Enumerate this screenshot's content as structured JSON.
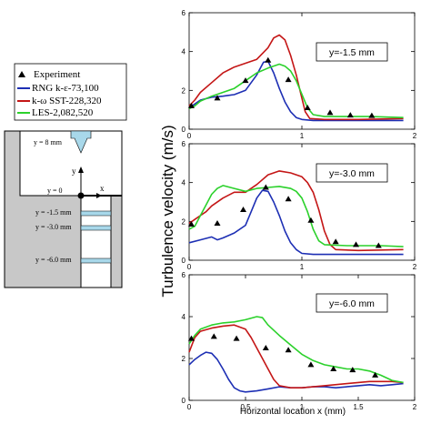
{
  "legend": {
    "entries": [
      {
        "label": "Experiment",
        "color": "#000000",
        "kind": "marker"
      },
      {
        "label": "RNG k-ε-73,100",
        "color": "#1d2fb4",
        "kind": "line"
      },
      {
        "label": "k-ω SST-228,320",
        "color": "#c41616",
        "kind": "line"
      },
      {
        "label": "LES-2,082,520",
        "color": "#2bd12b",
        "kind": "line"
      }
    ]
  },
  "schematic": {
    "inlet_label": "y = 8 mm",
    "origin_label": "y = 0",
    "y_axis_label": "y",
    "x_axis_label": "x",
    "stations": [
      "y = -1.5 mm",
      "y = -3.0 mm",
      "y = -6.0 mm"
    ],
    "colors": {
      "wall": "#c8c8c8",
      "slot": "#a8d8ea",
      "outline": "#000000"
    }
  },
  "shared_axes": {
    "ylabel": "Turbulence velocity (m/s)",
    "xlabel": "Horizontal location x (mm)"
  },
  "chart_data": [
    {
      "type": "line",
      "annotation": "y=-1.5 mm",
      "xlim": [
        0,
        2
      ],
      "ylim": [
        0,
        6
      ],
      "xticks": [
        "0",
        "1",
        "2"
      ],
      "yticks": [
        "0",
        "2",
        "4",
        "6"
      ],
      "series": [
        {
          "name": "Experiment",
          "kind": "scatter",
          "color": "#000000",
          "points": [
            [
              0.02,
              1.2
            ],
            [
              0.25,
              1.6
            ],
            [
              0.5,
              2.5
            ],
            [
              0.7,
              3.55
            ],
            [
              0.88,
              2.55
            ],
            [
              1.05,
              1.1
            ],
            [
              1.25,
              0.85
            ],
            [
              1.43,
              0.72
            ],
            [
              1.62,
              0.7
            ]
          ]
        },
        {
          "name": "RNG k-ε-73,100",
          "kind": "line",
          "color": "#1d2fb4",
          "points": [
            [
              0,
              1.1
            ],
            [
              0.05,
              1.3
            ],
            [
              0.1,
              1.5
            ],
            [
              0.2,
              1.65
            ],
            [
              0.3,
              1.7
            ],
            [
              0.4,
              1.78
            ],
            [
              0.5,
              2.0
            ],
            [
              0.6,
              2.8
            ],
            [
              0.66,
              3.45
            ],
            [
              0.7,
              3.5
            ],
            [
              0.75,
              2.9
            ],
            [
              0.8,
              2.1
            ],
            [
              0.85,
              1.4
            ],
            [
              0.9,
              0.9
            ],
            [
              0.95,
              0.6
            ],
            [
              1.0,
              0.5
            ],
            [
              1.1,
              0.45
            ],
            [
              1.3,
              0.45
            ],
            [
              1.6,
              0.45
            ],
            [
              1.9,
              0.45
            ]
          ]
        },
        {
          "name": "k-ω SST-228,320",
          "kind": "line",
          "color": "#c41616",
          "points": [
            [
              0,
              1.2
            ],
            [
              0.05,
              1.5
            ],
            [
              0.1,
              1.9
            ],
            [
              0.2,
              2.4
            ],
            [
              0.3,
              2.9
            ],
            [
              0.4,
              3.2
            ],
            [
              0.5,
              3.4
            ],
            [
              0.6,
              3.6
            ],
            [
              0.7,
              4.2
            ],
            [
              0.75,
              4.7
            ],
            [
              0.8,
              4.85
            ],
            [
              0.85,
              4.6
            ],
            [
              0.9,
              3.8
            ],
            [
              0.95,
              2.8
            ],
            [
              1.0,
              1.6
            ],
            [
              1.03,
              0.9
            ],
            [
              1.07,
              0.55
            ],
            [
              1.2,
              0.5
            ],
            [
              1.5,
              0.5
            ],
            [
              1.9,
              0.55
            ]
          ]
        },
        {
          "name": "LES-2,082,520",
          "kind": "line",
          "color": "#2bd12b",
          "points": [
            [
              0,
              1.05
            ],
            [
              0.05,
              1.2
            ],
            [
              0.1,
              1.45
            ],
            [
              0.2,
              1.7
            ],
            [
              0.3,
              1.9
            ],
            [
              0.4,
              2.1
            ],
            [
              0.5,
              2.5
            ],
            [
              0.6,
              2.9
            ],
            [
              0.7,
              3.15
            ],
            [
              0.8,
              3.35
            ],
            [
              0.85,
              3.25
            ],
            [
              0.9,
              3.0
            ],
            [
              0.95,
              2.5
            ],
            [
              1.0,
              1.8
            ],
            [
              1.05,
              1.1
            ],
            [
              1.1,
              0.75
            ],
            [
              1.2,
              0.65
            ],
            [
              1.4,
              0.65
            ],
            [
              1.6,
              0.65
            ],
            [
              1.9,
              0.6
            ]
          ]
        }
      ]
    },
    {
      "type": "line",
      "annotation": "y=-3.0 mm",
      "xlim": [
        0,
        2
      ],
      "ylim": [
        0,
        6
      ],
      "xticks": [
        "0",
        "1",
        "2"
      ],
      "yticks": [
        "0",
        "2",
        "4",
        "6"
      ],
      "series": [
        {
          "name": "Experiment",
          "kind": "scatter",
          "color": "#000000",
          "points": [
            [
              0.02,
              1.85
            ],
            [
              0.25,
              1.9
            ],
            [
              0.48,
              2.6
            ],
            [
              0.68,
              3.75
            ],
            [
              0.88,
              3.15
            ],
            [
              1.08,
              2.05
            ],
            [
              1.3,
              0.95
            ],
            [
              1.48,
              0.8
            ],
            [
              1.68,
              0.75
            ]
          ]
        },
        {
          "name": "RNG k-ε-73,100",
          "kind": "line",
          "color": "#1d2fb4",
          "points": [
            [
              0,
              0.9
            ],
            [
              0.1,
              1.05
            ],
            [
              0.2,
              1.2
            ],
            [
              0.25,
              1.05
            ],
            [
              0.3,
              1.15
            ],
            [
              0.4,
              1.4
            ],
            [
              0.5,
              1.8
            ],
            [
              0.55,
              2.5
            ],
            [
              0.6,
              3.2
            ],
            [
              0.65,
              3.6
            ],
            [
              0.7,
              3.55
            ],
            [
              0.75,
              3.0
            ],
            [
              0.8,
              2.3
            ],
            [
              0.85,
              1.5
            ],
            [
              0.9,
              0.9
            ],
            [
              0.95,
              0.55
            ],
            [
              1.0,
              0.35
            ],
            [
              1.1,
              0.3
            ],
            [
              1.3,
              0.3
            ],
            [
              1.6,
              0.3
            ],
            [
              1.9,
              0.3
            ]
          ]
        },
        {
          "name": "k-ω SST-228,320",
          "kind": "line",
          "color": "#c41616",
          "points": [
            [
              0,
              1.9
            ],
            [
              0.05,
              2.1
            ],
            [
              0.1,
              2.3
            ],
            [
              0.15,
              2.5
            ],
            [
              0.2,
              2.8
            ],
            [
              0.3,
              3.2
            ],
            [
              0.4,
              3.5
            ],
            [
              0.5,
              3.5
            ],
            [
              0.6,
              3.9
            ],
            [
              0.7,
              4.4
            ],
            [
              0.8,
              4.6
            ],
            [
              0.9,
              4.5
            ],
            [
              1.0,
              4.3
            ],
            [
              1.05,
              4.0
            ],
            [
              1.1,
              3.5
            ],
            [
              1.15,
              2.6
            ],
            [
              1.2,
              1.5
            ],
            [
              1.25,
              0.8
            ],
            [
              1.3,
              0.55
            ],
            [
              1.5,
              0.5
            ],
            [
              1.9,
              0.55
            ]
          ]
        },
        {
          "name": "LES-2,082,520",
          "kind": "line",
          "color": "#2bd12b",
          "points": [
            [
              0,
              1.6
            ],
            [
              0.05,
              1.75
            ],
            [
              0.1,
              2.3
            ],
            [
              0.15,
              2.85
            ],
            [
              0.2,
              3.4
            ],
            [
              0.25,
              3.7
            ],
            [
              0.3,
              3.85
            ],
            [
              0.4,
              3.7
            ],
            [
              0.5,
              3.55
            ],
            [
              0.6,
              3.7
            ],
            [
              0.7,
              3.75
            ],
            [
              0.8,
              3.8
            ],
            [
              0.9,
              3.7
            ],
            [
              0.95,
              3.55
            ],
            [
              1.0,
              3.2
            ],
            [
              1.05,
              2.5
            ],
            [
              1.1,
              1.6
            ],
            [
              1.15,
              1.0
            ],
            [
              1.2,
              0.8
            ],
            [
              1.4,
              0.75
            ],
            [
              1.7,
              0.75
            ],
            [
              1.9,
              0.7
            ]
          ]
        }
      ]
    },
    {
      "type": "line",
      "annotation": "y=-6.0 mm",
      "xlim": [
        0,
        2
      ],
      "ylim": [
        0,
        6
      ],
      "xticks": [
        "0",
        "0.5",
        "1",
        "1.5",
        "2"
      ],
      "yticks": [
        "0",
        "2",
        "4",
        "6"
      ],
      "series": [
        {
          "name": "Experiment",
          "kind": "scatter",
          "color": "#000000",
          "points": [
            [
              0.02,
              2.95
            ],
            [
              0.22,
              3.05
            ],
            [
              0.42,
              2.95
            ],
            [
              0.68,
              2.5
            ],
            [
              0.88,
              2.4
            ],
            [
              1.08,
              1.7
            ],
            [
              1.28,
              1.5
            ],
            [
              1.45,
              1.45
            ],
            [
              1.65,
              1.2
            ]
          ]
        },
        {
          "name": "RNG k-ε-73,100",
          "kind": "line",
          "color": "#1d2fb4",
          "points": [
            [
              0,
              1.7
            ],
            [
              0.05,
              1.95
            ],
            [
              0.1,
              2.15
            ],
            [
              0.15,
              2.3
            ],
            [
              0.2,
              2.25
            ],
            [
              0.25,
              1.95
            ],
            [
              0.3,
              1.5
            ],
            [
              0.35,
              1.0
            ],
            [
              0.4,
              0.6
            ],
            [
              0.45,
              0.45
            ],
            [
              0.5,
              0.4
            ],
            [
              0.6,
              0.45
            ],
            [
              0.7,
              0.55
            ],
            [
              0.8,
              0.65
            ],
            [
              0.9,
              0.6
            ],
            [
              1.0,
              0.6
            ],
            [
              1.1,
              0.65
            ],
            [
              1.2,
              0.65
            ],
            [
              1.3,
              0.6
            ],
            [
              1.5,
              0.7
            ],
            [
              1.6,
              0.75
            ],
            [
              1.7,
              0.7
            ],
            [
              1.8,
              0.75
            ],
            [
              1.9,
              0.8
            ]
          ]
        },
        {
          "name": "k-ω SST-228,320",
          "kind": "line",
          "color": "#c41616",
          "points": [
            [
              0,
              2.3
            ],
            [
              0.05,
              3.0
            ],
            [
              0.1,
              3.3
            ],
            [
              0.2,
              3.45
            ],
            [
              0.3,
              3.55
            ],
            [
              0.4,
              3.6
            ],
            [
              0.5,
              3.4
            ],
            [
              0.55,
              3.0
            ],
            [
              0.6,
              2.5
            ],
            [
              0.65,
              2.0
            ],
            [
              0.7,
              1.5
            ],
            [
              0.75,
              1.0
            ],
            [
              0.8,
              0.7
            ],
            [
              0.9,
              0.6
            ],
            [
              1.0,
              0.6
            ],
            [
              1.2,
              0.7
            ],
            [
              1.4,
              0.8
            ],
            [
              1.6,
              0.9
            ],
            [
              1.8,
              0.9
            ],
            [
              1.9,
              0.85
            ]
          ]
        },
        {
          "name": "LES-2,082,520",
          "kind": "line",
          "color": "#2bd12b",
          "points": [
            [
              0,
              2.7
            ],
            [
              0.05,
              3.1
            ],
            [
              0.1,
              3.4
            ],
            [
              0.2,
              3.6
            ],
            [
              0.3,
              3.7
            ],
            [
              0.4,
              3.75
            ],
            [
              0.5,
              3.85
            ],
            [
              0.6,
              4.0
            ],
            [
              0.65,
              3.95
            ],
            [
              0.7,
              3.6
            ],
            [
              0.8,
              3.1
            ],
            [
              0.9,
              2.65
            ],
            [
              1.0,
              2.2
            ],
            [
              1.1,
              1.9
            ],
            [
              1.2,
              1.7
            ],
            [
              1.3,
              1.6
            ],
            [
              1.4,
              1.5
            ],
            [
              1.5,
              1.5
            ],
            [
              1.6,
              1.4
            ],
            [
              1.7,
              1.2
            ],
            [
              1.8,
              0.95
            ],
            [
              1.9,
              0.85
            ]
          ]
        }
      ]
    }
  ]
}
